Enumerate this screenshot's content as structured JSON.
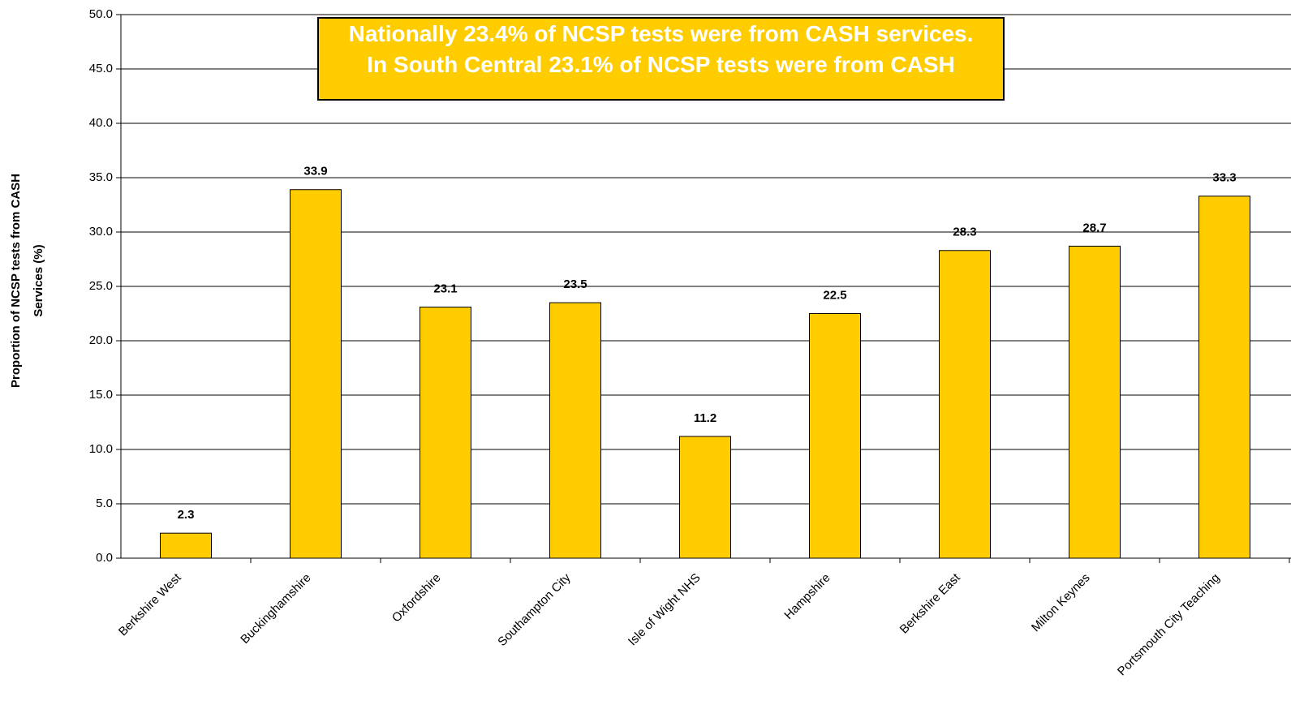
{
  "chart_data": {
    "type": "bar",
    "annotation": "Nationally 23.4% of NCSP tests were from CASH services. In South Central 23.1% of NCSP tests were from CASH",
    "y_label": "Proportion of NCSP tests from CASH Services (%)",
    "categories": [
      "Berkshire West",
      "Buckinghamshire",
      "Oxfordshire",
      "Southampton City",
      "Isle of Wight NHS",
      "Hampshire",
      "Berkshire East",
      "Milton Keynes",
      "Portsmouth City Teaching"
    ],
    "values": [
      2.3,
      33.9,
      23.1,
      23.5,
      11.2,
      22.5,
      28.3,
      28.7,
      33.3
    ],
    "color": "#ffcc00",
    "ylim": [
      0,
      50
    ],
    "yticks": [
      {
        "value": 0,
        "label": "0.0"
      },
      {
        "value": 5,
        "label": "5.0"
      },
      {
        "value": 10,
        "label": "10.0"
      },
      {
        "value": 15,
        "label": "15.0"
      },
      {
        "value": 20,
        "label": "20.0"
      },
      {
        "value": 25,
        "label": "25.0"
      },
      {
        "value": 30,
        "label": "30.0"
      },
      {
        "value": 35,
        "label": "35.0"
      },
      {
        "value": 40,
        "label": "40.0"
      },
      {
        "value": 45,
        "label": "45.0"
      },
      {
        "value": 50,
        "label": "50.0"
      }
    ],
    "grid": true
  }
}
